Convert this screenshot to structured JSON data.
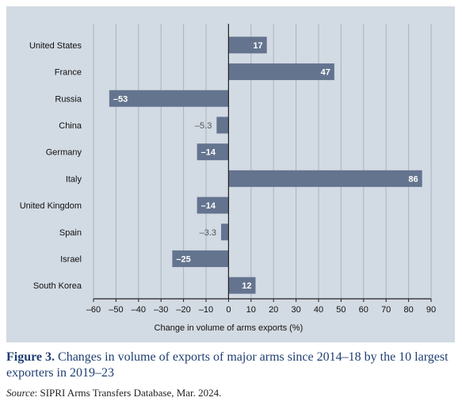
{
  "chart_data": {
    "type": "bar",
    "orientation": "horizontal",
    "categories": [
      "United States",
      "France",
      "Russia",
      "China",
      "Germany",
      "Italy",
      "United Kingdom",
      "Spain",
      "Israel",
      "South Korea"
    ],
    "values": [
      17,
      47,
      -53,
      -5.3,
      -14,
      86,
      -14,
      -3.3,
      -25,
      12
    ],
    "value_labels": [
      "17",
      "47",
      "–53",
      "–5.3",
      "–14",
      "86",
      "–14",
      "–3.3",
      "–25",
      "12"
    ],
    "xlabel": "Change in volume of arms exports (%)",
    "xlim": [
      -60,
      90
    ],
    "xticks": [
      -60,
      -50,
      -40,
      -30,
      -20,
      -10,
      0,
      10,
      20,
      30,
      40,
      50,
      60,
      70,
      80,
      90
    ],
    "xtick_labels": [
      "–60",
      "–50",
      "–40",
      "–30",
      "–20",
      "–10",
      "0",
      "10",
      "20",
      "30",
      "40",
      "50",
      "60",
      "70",
      "80",
      "90"
    ],
    "grid": true,
    "colors": {
      "bar": "#64748f",
      "background": "#d2dae3",
      "grid": "#a9b3bf",
      "axis": "#222222"
    }
  },
  "caption": {
    "figure_number": "Figure 3.",
    "text": "Changes in volume of exports of major arms since 2014–18 by the 10 largest exporters in 2019–23"
  },
  "source": {
    "label": "Source",
    "text": ": SIPRI Arms Transfers Database, Mar. 2024."
  }
}
